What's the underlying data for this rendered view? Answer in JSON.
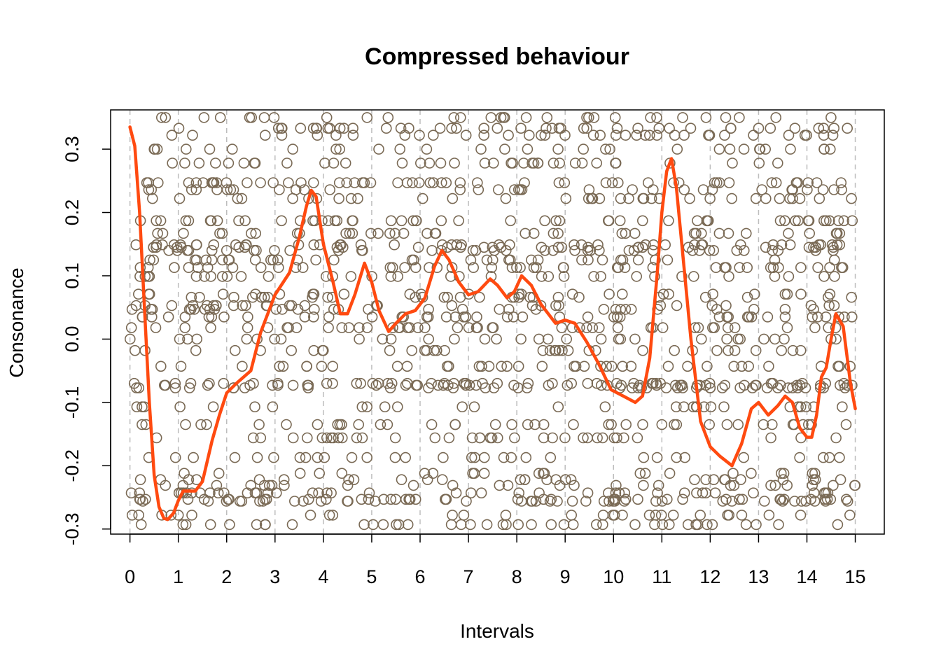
{
  "chart_data": {
    "type": "scatter",
    "title": "Compressed behaviour",
    "xlabel": "Intervals",
    "ylabel": "Consonance",
    "xlim": [
      -0.4,
      15.6
    ],
    "ylim": [
      -0.308,
      0.362
    ],
    "x_ticks": [
      0,
      1,
      2,
      3,
      4,
      5,
      6,
      7,
      8,
      9,
      10,
      11,
      12,
      13,
      14,
      15
    ],
    "x_tick_labels": [
      "0",
      "1",
      "2",
      "3",
      "4",
      "5",
      "6",
      "7",
      "8",
      "9",
      "10",
      "11",
      "12",
      "13",
      "14",
      "15"
    ],
    "y_ticks": [
      -0.3,
      -0.2,
      -0.1,
      0.0,
      0.1,
      0.2,
      0.3
    ],
    "y_tick_labels": [
      "-0.3",
      "-0.2",
      "-0.1",
      "0.0",
      "0.1",
      "0.2",
      "0.3"
    ],
    "vertical_gridlines": [
      0,
      1,
      2,
      3,
      4,
      5,
      6,
      7,
      8,
      9,
      10,
      11,
      12,
      13,
      14,
      15
    ],
    "grid": "vertical dashed lines at integer intervals",
    "colors": {
      "points": "#7a6a55",
      "smooth": "#ff4a10",
      "grid": "#bdbdbd"
    },
    "consonance_levels": [
      -0.333,
      -0.293,
      -0.278,
      -0.256,
      -0.253,
      -0.243,
      -0.231,
      -0.222,
      -0.212,
      -0.187,
      -0.156,
      -0.135,
      -0.107,
      -0.077,
      -0.073,
      -0.07,
      -0.043,
      -0.018,
      0.0,
      0.018,
      0.035,
      0.047,
      0.053,
      0.066,
      0.071,
      0.099,
      0.113,
      0.125,
      0.14,
      0.145,
      0.149,
      0.167,
      0.187,
      0.222,
      0.236,
      0.247,
      0.278,
      0.3,
      0.322,
      0.333,
      0.35
    ],
    "series": [
      {
        "type": "line",
        "x": [
          0,
          0.1,
          0.2,
          0.3,
          0.4,
          0.5,
          0.6,
          0.7,
          0.78,
          0.9,
          1.0,
          1.1,
          1.2,
          1.35,
          1.5,
          1.7,
          1.85,
          2.0,
          2.2,
          2.5,
          2.7,
          3.0,
          3.3,
          3.5,
          3.65,
          3.75,
          3.85,
          4.0,
          4.2,
          4.35,
          4.5,
          4.65,
          4.85,
          5.0,
          5.15,
          5.35,
          5.5,
          5.7,
          5.9,
          6.1,
          6.3,
          6.45,
          6.6,
          6.8,
          7.0,
          7.2,
          7.45,
          7.6,
          7.8,
          7.95,
          8.1,
          8.3,
          8.5,
          8.8,
          9.0,
          9.2,
          9.45,
          9.7,
          9.95,
          10.2,
          10.45,
          10.6,
          10.75,
          10.9,
          11.0,
          11.1,
          11.2,
          11.3,
          11.45,
          11.6,
          11.8,
          12.0,
          12.2,
          12.45,
          12.65,
          12.85,
          13.0,
          13.2,
          13.4,
          13.55,
          13.7,
          13.85,
          14.0,
          14.1,
          14.2,
          14.3,
          14.4,
          14.5,
          14.6,
          14.75,
          14.9,
          15.0
        ],
        "y": [
          0.335,
          0.305,
          0.2,
          0.05,
          -0.1,
          -0.215,
          -0.265,
          -0.283,
          -0.285,
          -0.275,
          -0.255,
          -0.24,
          -0.24,
          -0.24,
          -0.225,
          -0.16,
          -0.12,
          -0.085,
          -0.07,
          -0.05,
          0.01,
          0.07,
          0.105,
          0.16,
          0.21,
          0.235,
          0.225,
          0.15,
          0.09,
          0.04,
          0.04,
          0.07,
          0.12,
          0.09,
          0.045,
          0.012,
          0.025,
          0.04,
          0.045,
          0.065,
          0.115,
          0.14,
          0.125,
          0.09,
          0.07,
          0.075,
          0.095,
          0.085,
          0.065,
          0.075,
          0.1,
          0.085,
          0.055,
          0.025,
          0.03,
          0.025,
          -0.005,
          -0.04,
          -0.08,
          -0.09,
          -0.1,
          -0.09,
          -0.03,
          0.1,
          0.2,
          0.265,
          0.285,
          0.24,
          0.12,
          0.0,
          -0.13,
          -0.17,
          -0.185,
          -0.2,
          -0.165,
          -0.11,
          -0.1,
          -0.12,
          -0.105,
          -0.09,
          -0.1,
          -0.14,
          -0.155,
          -0.155,
          -0.12,
          -0.06,
          -0.045,
          0.0,
          0.04,
          0.02,
          -0.07,
          -0.11
        ]
      }
    ]
  }
}
